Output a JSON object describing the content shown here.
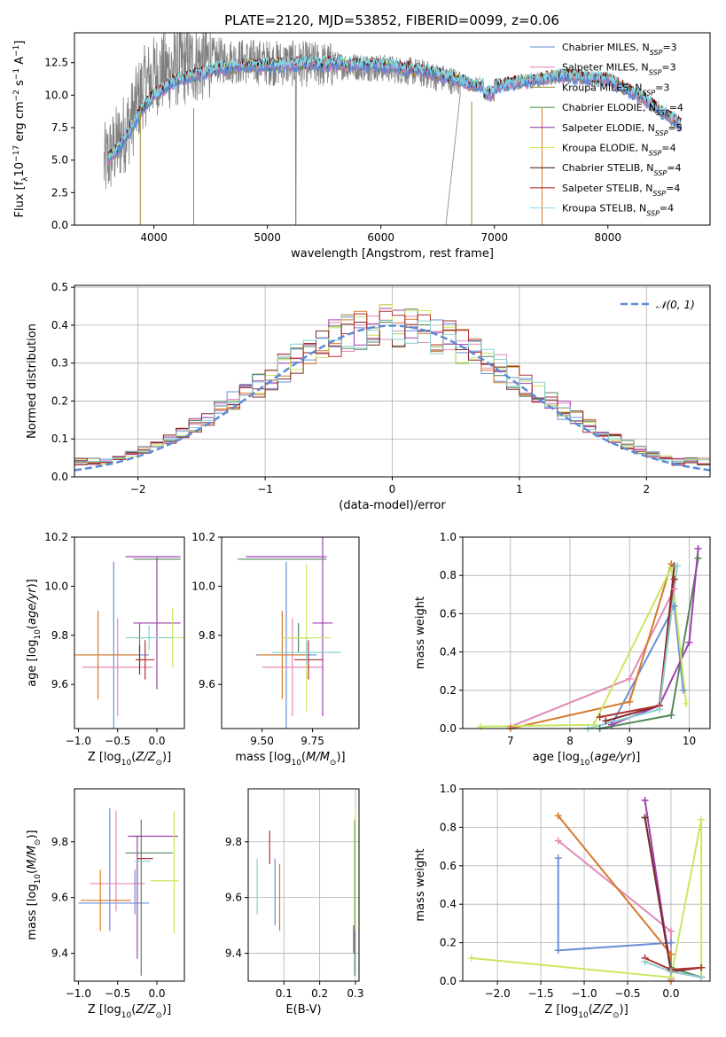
{
  "figure": {
    "title": "PLATE=2120, MJD=53852, FIBERID=0099, z=0.06"
  },
  "colors": {
    "models": [
      "#5b8bd6",
      "#e07fb4",
      "#9c8a2a",
      "#3f8a47",
      "#8b2ba5",
      "#d8e35a",
      "#3a1010",
      "#a01010",
      "#86d8e8"
    ],
    "palette": [
      "#6a8fd8",
      "#e38ab8",
      "#d77a2a",
      "#55885a",
      "#a040b0",
      "#c8e860",
      "#7a2a2a",
      "#b03030",
      "#8cd0d0"
    ],
    "data_spectrum": "#808080",
    "gaussian": "#5b8bd6"
  },
  "chart_data": [
    {
      "id": "spectrum",
      "type": "line",
      "title": "PLATE=2120, MJD=53852, FIBERID=0099, z=0.06",
      "xlabel": "wavelength [Angstrom, rest frame]",
      "ylabel_parts": [
        "Flux [f",
        "λ",
        "10",
        "−17",
        " erg cm",
        "−2",
        " s",
        "−1",
        " A",
        "−1",
        "]"
      ],
      "xlim": [
        3300,
        8900
      ],
      "ylim": [
        0,
        14.8
      ],
      "xticks": [
        4000,
        5000,
        6000,
        7000,
        8000
      ],
      "yticks": [
        0.0,
        2.5,
        5.0,
        7.5,
        10.0,
        12.5
      ],
      "xtick_labels": [
        "4000",
        "5000",
        "6000",
        "7000",
        "8000"
      ],
      "ytick_labels": [
        "0.0",
        "2.5",
        "5.0",
        "7.5",
        "10.0",
        "12.5"
      ],
      "grid": false,
      "legend_placement": "top-right",
      "legend": [
        {
          "name": "Chabrier MILES",
          "nssp": "3"
        },
        {
          "name": "Salpeter MILES",
          "nssp": "3"
        },
        {
          "name": "Kroupa MILES",
          "nssp": "3"
        },
        {
          "name": "Chabrier ELODIE",
          "nssp": "4"
        },
        {
          "name": "Salpeter ELODIE",
          "nssp": "5"
        },
        {
          "name": "Kroupa ELODIE",
          "nssp": "4"
        },
        {
          "name": "Chabrier STELIB",
          "nssp": "4"
        },
        {
          "name": "Salpeter STELIB",
          "nssp": "4"
        },
        {
          "name": "Kroupa STELIB",
          "nssp": "4"
        }
      ],
      "model_continuum": {
        "x": [
          3600,
          3700,
          3800,
          3900,
          4000,
          4200,
          4500,
          4800,
          5000,
          5300,
          5600,
          6000,
          6300,
          6550,
          6800,
          7000,
          7300,
          7600,
          8000,
          8300,
          8500,
          8650
        ],
        "y": [
          5.2,
          6.0,
          7.5,
          9.0,
          10.0,
          11.2,
          11.9,
          12.3,
          12.3,
          12.4,
          12.4,
          12.3,
          12.0,
          11.5,
          10.8,
          10.7,
          11.1,
          11.5,
          11.2,
          9.8,
          8.6,
          7.7
        ]
      },
      "data_continuum": {
        "x": [
          3550,
          3700,
          3800,
          3900,
          4000,
          4200,
          4500,
          4800,
          5000,
          5300,
          5600,
          6000,
          6300,
          6550,
          6700
        ],
        "y": [
          4.5,
          6.5,
          8.0,
          10.5,
          11.5,
          12.2,
          12.7,
          12.6,
          12.5,
          12.4,
          12.3,
          12.1,
          11.8,
          11.3,
          11.0
        ]
      }
    },
    {
      "id": "residuals",
      "type": "line",
      "xlabel": "(data-model)/error",
      "ylabel": "Normed distribution",
      "xlim": [
        -2.5,
        2.5
      ],
      "ylim": [
        0,
        0.505
      ],
      "xticks": [
        -2,
        -1,
        0,
        1,
        2
      ],
      "xtick_labels": [
        "−2",
        "−1",
        "0",
        "1",
        "2"
      ],
      "yticks": [
        0.0,
        0.1,
        0.2,
        0.3,
        0.4,
        0.5
      ],
      "ytick_labels": [
        "0.0",
        "0.1",
        "0.2",
        "0.3",
        "0.4",
        "0.5"
      ],
      "grid": true,
      "legend_placement": "top-right",
      "legend": [
        {
          "name": "𝒩(0, 1)"
        }
      ],
      "gaussian": {
        "mu": 0,
        "sigma": 1
      }
    },
    {
      "id": "age-vs-Z",
      "type": "scatter",
      "xlabel": "Z [log10(Z/Z⊙)]",
      "ylabel": "age [log10(age/yr)]",
      "xlim": [
        -1.05,
        0.35
      ],
      "ylim": [
        9.42,
        10.2
      ],
      "xticks": [
        -1.0,
        -0.5,
        0.0
      ],
      "xtick_labels": [
        "−1.0",
        "−0.5",
        "0.0"
      ],
      "yticks": [
        9.6,
        9.8,
        10.0,
        10.2
      ],
      "ytick_labels": [
        "9.6",
        "9.8",
        "10.0",
        "10.2"
      ],
      "grid": false,
      "points": [
        {
          "x": -0.55,
          "y": 9.72,
          "xerr": 0.45,
          "yerr": 0.38,
          "c": 0
        },
        {
          "x": -0.5,
          "y": 9.67,
          "xerr": 0.45,
          "yerr": 0.2,
          "c": 1
        },
        {
          "x": -0.75,
          "y": 9.72,
          "xerr": 0.5,
          "yerr": 0.18,
          "c": 2
        },
        {
          "x": -0.22,
          "y": 9.79,
          "xerr": 0.06,
          "yerr": 0.06,
          "c": 3
        },
        {
          "x": 0.0,
          "y": 9.85,
          "xerr": 0.3,
          "yerr": 0.27,
          "c": 4
        },
        {
          "x": 0.2,
          "y": 9.79,
          "xerr": 0.18,
          "yerr": 0.12,
          "c": 5
        },
        {
          "x": -0.22,
          "y": 9.7,
          "xerr": 0.05,
          "yerr": 0.06,
          "c": 6
        },
        {
          "x": -0.15,
          "y": 9.7,
          "xerr": 0.12,
          "yerr": 0.08,
          "c": 7
        },
        {
          "x": -0.1,
          "y": 9.79,
          "xerr": 0.3,
          "yerr": 0.05,
          "c": 8
        },
        {
          "x": -0.05,
          "y": 10.12,
          "xerr": 0.35,
          "yerr": 0.0,
          "c": 4
        },
        {
          "x": 0.0,
          "y": 10.11,
          "xerr": 0.3,
          "yerr": 0.0,
          "c": 3
        }
      ]
    },
    {
      "id": "age-vs-mass",
      "type": "scatter",
      "xlabel": "mass [log10(M/M⊙)]",
      "ylabel": "",
      "xlim": [
        9.3,
        9.98
      ],
      "ylim": [
        9.42,
        10.2
      ],
      "xticks": [
        9.5,
        9.75
      ],
      "xtick_labels": [
        "9.50",
        "9.75"
      ],
      "yticks": [
        9.6,
        9.8,
        10.0,
        10.2
      ],
      "ytick_labels": [
        "9.6",
        "9.8",
        "10.0",
        "10.2"
      ],
      "grid": false,
      "points": [
        {
          "x": 9.62,
          "y": 9.72,
          "xerr": 0.15,
          "yerr": 0.38,
          "c": 0
        },
        {
          "x": 9.65,
          "y": 9.67,
          "xerr": 0.15,
          "yerr": 0.2,
          "c": 1
        },
        {
          "x": 9.6,
          "y": 9.72,
          "xerr": 0.12,
          "yerr": 0.18,
          "c": 2
        },
        {
          "x": 9.68,
          "y": 9.79,
          "xerr": 0.08,
          "yerr": 0.06,
          "c": 3
        },
        {
          "x": 9.8,
          "y": 9.85,
          "xerr": 0.05,
          "yerr": 0.38,
          "c": 4
        },
        {
          "x": 9.72,
          "y": 9.79,
          "xerr": 0.12,
          "yerr": 0.3,
          "c": 5
        },
        {
          "x": 9.73,
          "y": 9.7,
          "xerr": 0.07,
          "yerr": 0.08,
          "c": 7
        },
        {
          "x": 9.72,
          "y": 9.73,
          "xerr": 0.17,
          "yerr": 0.05,
          "c": 8
        },
        {
          "x": 9.6,
          "y": 10.11,
          "xerr": 0.22,
          "yerr": 0.0,
          "c": 3
        },
        {
          "x": 9.62,
          "y": 10.12,
          "xerr": 0.2,
          "yerr": 0.0,
          "c": 4
        }
      ]
    },
    {
      "id": "mass-weight-vs-age",
      "type": "line",
      "xlabel": "age [log10(age/yr)]",
      "ylabel": "mass weight",
      "xlim": [
        6.2,
        10.35
      ],
      "ylim": [
        0,
        1.0
      ],
      "xticks": [
        7,
        8,
        9,
        10
      ],
      "xtick_labels": [
        "7",
        "8",
        "9",
        "10"
      ],
      "yticks": [
        0.0,
        0.2,
        0.4,
        0.6,
        0.8,
        1.0
      ],
      "ytick_labels": [
        "0.0",
        "0.2",
        "0.4",
        "0.6",
        "0.8",
        "1.0"
      ],
      "grid": true,
      "series": [
        {
          "c": 0,
          "x": [
            8.7,
            9.75,
            9.9
          ],
          "y": [
            0.02,
            0.64,
            0.2
          ]
        },
        {
          "c": 1,
          "x": [
            7.0,
            9.0,
            9.75
          ],
          "y": [
            0.01,
            0.26,
            0.73
          ]
        },
        {
          "c": 2,
          "x": [
            7.0,
            9.0,
            9.7
          ],
          "y": [
            0.0,
            0.14,
            0.86
          ]
        },
        {
          "c": 3,
          "x": [
            8.5,
            9.7,
            10.15
          ],
          "y": [
            0.0,
            0.07,
            0.89
          ]
        },
        {
          "c": 4,
          "x": [
            8.7,
            9.5,
            10.0,
            10.15
          ],
          "y": [
            0.02,
            0.12,
            0.45,
            0.94
          ]
        },
        {
          "c": 5,
          "x": [
            6.5,
            8.4,
            9.7,
            9.95
          ],
          "y": [
            0.01,
            0.02,
            0.84,
            0.13
          ]
        },
        {
          "c": 6,
          "x": [
            8.6,
            9.5,
            9.75
          ],
          "y": [
            0.04,
            0.12,
            0.85
          ]
        },
        {
          "c": 7,
          "x": [
            8.5,
            9.5,
            9.75
          ],
          "y": [
            0.06,
            0.12,
            0.78
          ]
        },
        {
          "c": 8,
          "x": [
            8.3,
            9.5,
            9.8
          ],
          "y": [
            0.0,
            0.1,
            0.85
          ]
        }
      ]
    },
    {
      "id": "mass-vs-Z",
      "type": "scatter",
      "xlabel": "Z [log10(Z/Z⊙)]",
      "ylabel": "mass [log10(M/M⊙)]",
      "xlim": [
        -1.05,
        0.35
      ],
      "ylim": [
        9.3,
        9.99
      ],
      "xticks": [
        -1.0,
        -0.5,
        0.0
      ],
      "xtick_labels": [
        "−1.0",
        "−0.5",
        "0.0"
      ],
      "yticks": [
        9.4,
        9.6,
        9.8
      ],
      "ytick_labels": [
        "9.4",
        "9.6",
        "9.8"
      ],
      "grid": false,
      "points": [
        {
          "x": -0.55,
          "y": 9.58,
          "xerr": 0.45,
          "yerr": 0.0,
          "c": 0
        },
        {
          "x": -0.6,
          "y": 9.7,
          "xerr": 0.0,
          "yerr": 0.22,
          "c": 0
        },
        {
          "x": -0.5,
          "y": 9.65,
          "xerr": 0.35,
          "yerr": 0.0,
          "c": 1
        },
        {
          "x": -0.52,
          "y": 9.73,
          "xerr": 0.0,
          "yerr": 0.18,
          "c": 1
        },
        {
          "x": -0.65,
          "y": 9.59,
          "xerr": 0.32,
          "yerr": 0.0,
          "c": 2
        },
        {
          "x": -0.72,
          "y": 9.59,
          "xerr": 0.0,
          "yerr": 0.11,
          "c": 2
        },
        {
          "x": -0.25,
          "y": 9.82,
          "xerr": 0.05,
          "yerr": 0.0,
          "c": 3
        },
        {
          "x": -0.2,
          "y": 9.6,
          "xerr": 0.0,
          "yerr": 0.28,
          "c": 3
        },
        {
          "x": -0.1,
          "y": 9.76,
          "xerr": 0.3,
          "yerr": 0.0,
          "c": 3
        },
        {
          "x": -0.05,
          "y": 9.82,
          "xerr": 0.32,
          "yerr": 0.0,
          "c": 4
        },
        {
          "x": -0.25,
          "y": 9.6,
          "xerr": 0.0,
          "yerr": 0.22,
          "c": 4
        },
        {
          "x": 0.1,
          "y": 9.66,
          "xerr": 0.18,
          "yerr": 0.0,
          "c": 5
        },
        {
          "x": 0.22,
          "y": 9.69,
          "xerr": 0.0,
          "yerr": 0.22,
          "c": 5
        },
        {
          "x": -0.15,
          "y": 9.74,
          "xerr": 0.1,
          "yerr": 0.0,
          "c": 7
        },
        {
          "x": -0.18,
          "y": 9.73,
          "xerr": 0.1,
          "yerr": 0.0,
          "c": 8
        },
        {
          "x": -0.28,
          "y": 9.62,
          "xerr": 0.0,
          "yerr": 0.08,
          "c": 0
        }
      ]
    },
    {
      "id": "mass-vs-EBV",
      "type": "scatter",
      "xlabel": "E(B-V)",
      "ylabel": "",
      "xlim": [
        0.0,
        0.31
      ],
      "ylim": [
        9.3,
        9.99
      ],
      "xticks": [
        0.1,
        0.2,
        0.3
      ],
      "xtick_labels": [
        "0.1",
        "0.2",
        "0.3"
      ],
      "yticks": [
        9.4,
        9.6,
        9.8
      ],
      "ytick_labels": [
        "9.4",
        "9.6",
        "9.8"
      ],
      "grid": true,
      "points": [
        {
          "x": 0.025,
          "y": 9.64,
          "xerr": 0.0,
          "yerr": 0.1,
          "c": 8
        },
        {
          "x": 0.06,
          "y": 9.78,
          "xerr": 0.0,
          "yerr": 0.06,
          "c": 7
        },
        {
          "x": 0.075,
          "y": 9.62,
          "xerr": 0.0,
          "yerr": 0.12,
          "c": 0
        },
        {
          "x": 0.088,
          "y": 9.6,
          "xerr": 0.0,
          "yerr": 0.12,
          "c": 2
        },
        {
          "x": 0.295,
          "y": 9.45,
          "xerr": 0.0,
          "yerr": 0.05,
          "c": 4
        },
        {
          "x": 0.298,
          "y": 9.6,
          "xerr": 0.0,
          "yerr": 0.28,
          "c": 3
        },
        {
          "x": 0.3,
          "y": 9.7,
          "xerr": 0.0,
          "yerr": 0.22,
          "c": 5
        }
      ]
    },
    {
      "id": "mass-weight-vs-Z",
      "type": "line",
      "xlabel": "Z [log10(Z/Z⊙)]",
      "ylabel": "mass weight",
      "xlim": [
        -2.4,
        0.45
      ],
      "ylim": [
        0,
        1.0
      ],
      "xticks": [
        -2.0,
        -1.5,
        -1.0,
        -0.5,
        0.0
      ],
      "xtick_labels": [
        "−2.0",
        "−1.5",
        "−1.0",
        "−0.5",
        "0.0"
      ],
      "yticks": [
        0.0,
        0.2,
        0.4,
        0.6,
        0.8,
        1.0
      ],
      "ytick_labels": [
        "0.0",
        "0.2",
        "0.4",
        "0.6",
        "0.8",
        "1.0"
      ],
      "grid": true,
      "series": [
        {
          "c": 0,
          "x": [
            -1.3,
            -1.3,
            0.0
          ],
          "y": [
            0.64,
            0.16,
            0.2
          ]
        },
        {
          "c": 1,
          "x": [
            -1.3,
            0.0,
            0.0
          ],
          "y": [
            0.73,
            0.26,
            0.01
          ]
        },
        {
          "c": 2,
          "x": [
            -1.3,
            0.0,
            0.0
          ],
          "y": [
            0.86,
            0.14,
            0.0
          ]
        },
        {
          "c": 3,
          "x": [
            -0.3,
            0.0,
            0.35
          ],
          "y": [
            0.85,
            0.07,
            0.02
          ]
        },
        {
          "c": 4,
          "x": [
            -0.3,
            0.0,
            0.35
          ],
          "y": [
            0.94,
            0.05,
            0.02
          ]
        },
        {
          "c": 5,
          "x": [
            -2.3,
            0.0,
            0.35,
            0.35
          ],
          "y": [
            0.12,
            0.02,
            0.84,
            0.02
          ]
        },
        {
          "c": 6,
          "x": [
            -0.3,
            0.0,
            0.35
          ],
          "y": [
            0.85,
            0.05,
            0.07
          ]
        },
        {
          "c": 7,
          "x": [
            -0.3,
            0.0,
            0.35
          ],
          "y": [
            0.12,
            0.06,
            0.07
          ]
        },
        {
          "c": 8,
          "x": [
            -0.3,
            0.0,
            0.35
          ],
          "y": [
            0.1,
            0.05,
            0.02
          ]
        }
      ]
    }
  ]
}
